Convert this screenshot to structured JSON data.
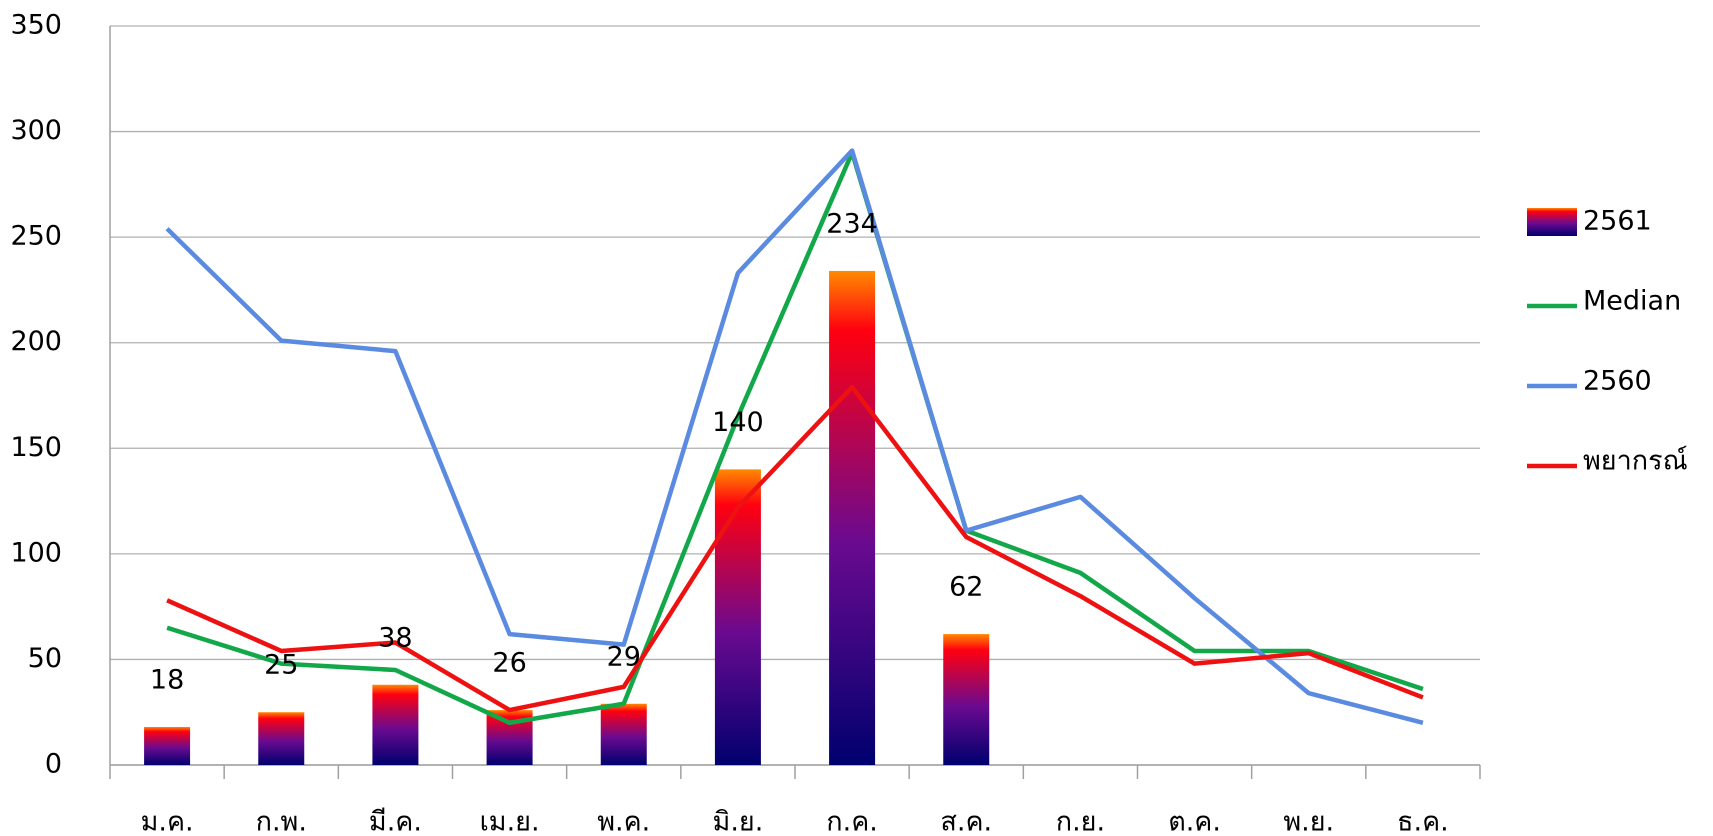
{
  "chart_data": {
    "type": "bar",
    "categories": [
      "ม.ค.",
      "ก.พ.",
      "มี.ค.",
      "เม.ย.",
      "พ.ค.",
      "มิ.ย.",
      "ก.ค.",
      "ส.ค.",
      "ก.ย.",
      "ต.ค.",
      "พ.ย.",
      "ธ.ค."
    ],
    "series": [
      {
        "name": "2561",
        "type": "bar",
        "colors": [
          "#ff8a00",
          "#ff0010",
          "#6a0a90",
          "#00006e"
        ],
        "values": [
          18,
          25,
          38,
          26,
          29,
          140,
          234,
          62,
          null,
          null,
          null,
          null
        ]
      },
      {
        "name": "Median",
        "type": "line",
        "color": "#12a84a",
        "values": [
          65,
          48,
          45,
          20,
          29,
          165,
          290,
          111,
          91,
          54,
          54,
          36
        ]
      },
      {
        "name": "2560",
        "type": "line",
        "color": "#5b8be0",
        "values": [
          254,
          201,
          196,
          62,
          57,
          233,
          291,
          111,
          127,
          79,
          34,
          20
        ]
      },
      {
        "name": "พยากรณ์",
        "type": "line",
        "color": "#ee1111",
        "values": [
          78,
          54,
          58,
          26,
          37,
          122,
          179,
          108,
          80,
          48,
          53,
          32
        ]
      }
    ],
    "ylim": [
      0,
      350
    ],
    "yticks": [
      0,
      50,
      100,
      150,
      200,
      250,
      300,
      350
    ],
    "grid": true,
    "legend": "right"
  }
}
